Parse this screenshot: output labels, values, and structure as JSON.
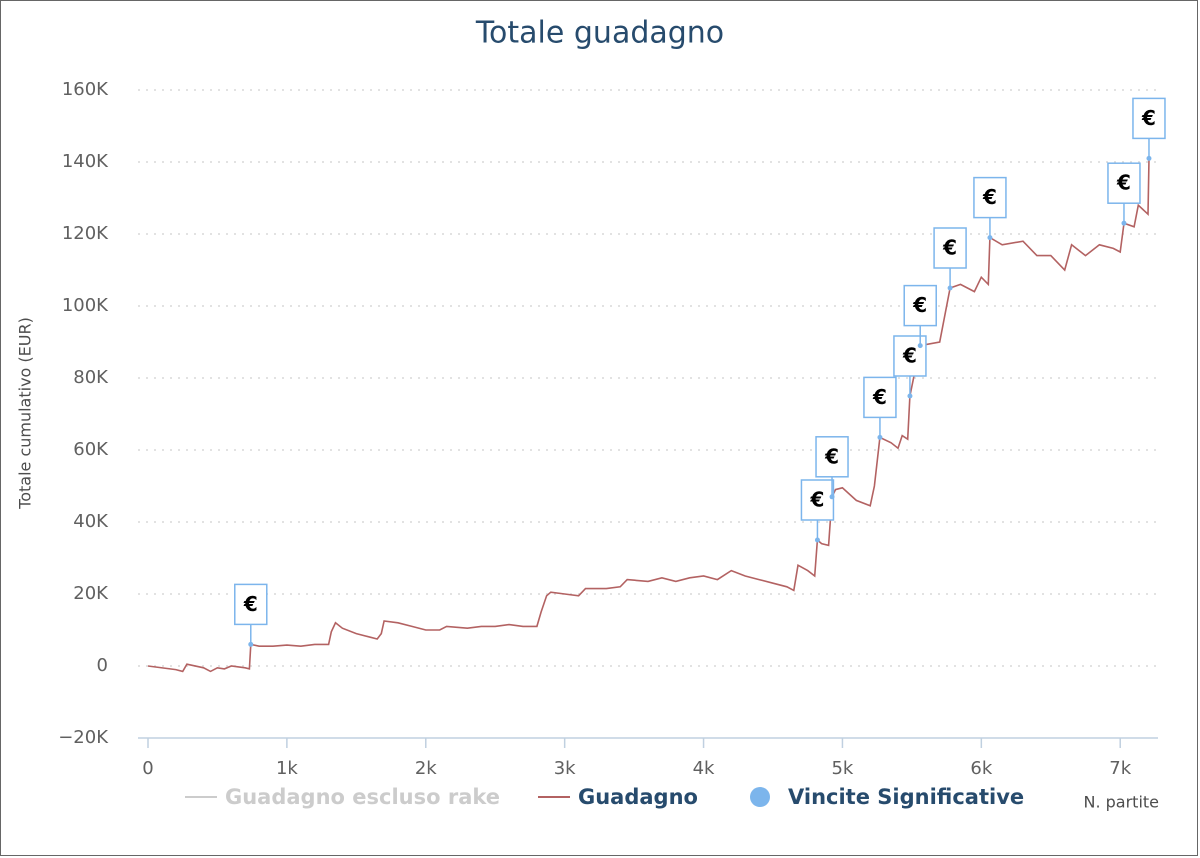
{
  "chart_data": {
    "type": "line",
    "title": "Totale guadagno",
    "xlabel": "N. partite",
    "ylabel": "Totale cumulativo (EUR)",
    "xlim": [
      -72,
      7272
    ],
    "ylim": [
      -20000,
      160000
    ],
    "xticks": [
      0,
      {
        "value": 1000,
        "label": "1k"
      },
      {
        "value": 2000,
        "label": "2k"
      },
      {
        "value": 3000,
        "label": "3k"
      },
      {
        "value": 4000,
        "label": "4k"
      },
      {
        "value": 5000,
        "label": "5k"
      },
      {
        "value": 6000,
        "label": "6k"
      },
      {
        "value": 7000,
        "label": "7k"
      }
    ],
    "yticks": [
      {
        "value": -20000,
        "label": "−20K"
      },
      0,
      {
        "value": 20000,
        "label": "20K"
      },
      {
        "value": 40000,
        "label": "40K"
      },
      {
        "value": 60000,
        "label": "60K"
      },
      {
        "value": 80000,
        "label": "80K"
      },
      {
        "value": 100000,
        "label": "100K"
      },
      {
        "value": 120000,
        "label": "120K"
      },
      {
        "value": 140000,
        "label": "140K"
      },
      {
        "value": 160000,
        "label": "160K"
      }
    ],
    "grid": true,
    "series": [
      {
        "name": "Guadagno escluso rake",
        "color": "#cccccc",
        "visible": false
      },
      {
        "name": "Guadagno",
        "color": "#b36262",
        "x": [
          0,
          200,
          250,
          280,
          400,
          450,
          500,
          550,
          600,
          700,
          730,
          740,
          800,
          900,
          1000,
          1100,
          1200,
          1300,
          1320,
          1350,
          1400,
          1500,
          1600,
          1650,
          1680,
          1700,
          1800,
          1900,
          2000,
          2100,
          2150,
          2300,
          2400,
          2500,
          2600,
          2700,
          2800,
          2830,
          2870,
          2900,
          3000,
          3100,
          3150,
          3300,
          3400,
          3450,
          3600,
          3700,
          3800,
          3900,
          4000,
          4100,
          4200,
          4300,
          4400,
          4500,
          4600,
          4650,
          4680,
          4750,
          4800,
          4820,
          4850,
          4900,
          4925,
          4950,
          5000,
          5100,
          5200,
          5230,
          5270,
          5350,
          5400,
          5430,
          5470,
          5486,
          5560,
          5700,
          5775,
          5850,
          5950,
          6000,
          6050,
          6062,
          6150,
          6300,
          6400,
          6500,
          6600,
          6650,
          6750,
          6850,
          6950,
          7000,
          7027,
          7100,
          7130,
          7200,
          7207
        ],
        "values": [
          0,
          -1000,
          -1500,
          500,
          -500,
          -1500,
          -500,
          -800,
          0,
          -500,
          -800,
          6000,
          5500,
          5500,
          5800,
          5500,
          6000,
          6000,
          9500,
          12000,
          10500,
          9000,
          8000,
          7500,
          9000,
          12500,
          12000,
          11000,
          10000,
          10000,
          11000,
          10500,
          11000,
          11000,
          11500,
          11000,
          11000,
          15000,
          19500,
          20500,
          20000,
          19500,
          21500,
          21500,
          22000,
          24000,
          23500,
          24500,
          23500,
          24500,
          25000,
          24000,
          26500,
          25000,
          24000,
          23000,
          22000,
          21000,
          28000,
          26500,
          25000,
          35000,
          34000,
          33500,
          47000,
          49000,
          49500,
          46000,
          44500,
          50000,
          63500,
          62000,
          60500,
          64000,
          63000,
          75000,
          89000,
          90000,
          105000,
          106000,
          104000,
          108000,
          106000,
          119000,
          117000,
          118000,
          114000,
          114000,
          110000,
          117000,
          114000,
          117000,
          116000,
          115000,
          123000,
          122000,
          128000,
          125500,
          141000
        ]
      },
      {
        "name": "Vincite Significative",
        "color": "#7cb5ec",
        "type": "scatter",
        "flag_text": "€",
        "x": [
          740,
          4820,
          4925,
          5270,
          5486,
          5560,
          5775,
          6062,
          7027,
          7207
        ],
        "values": [
          6000,
          35000,
          47000,
          63500,
          75000,
          89000,
          105000,
          119000,
          123000,
          141000
        ]
      }
    ]
  }
}
